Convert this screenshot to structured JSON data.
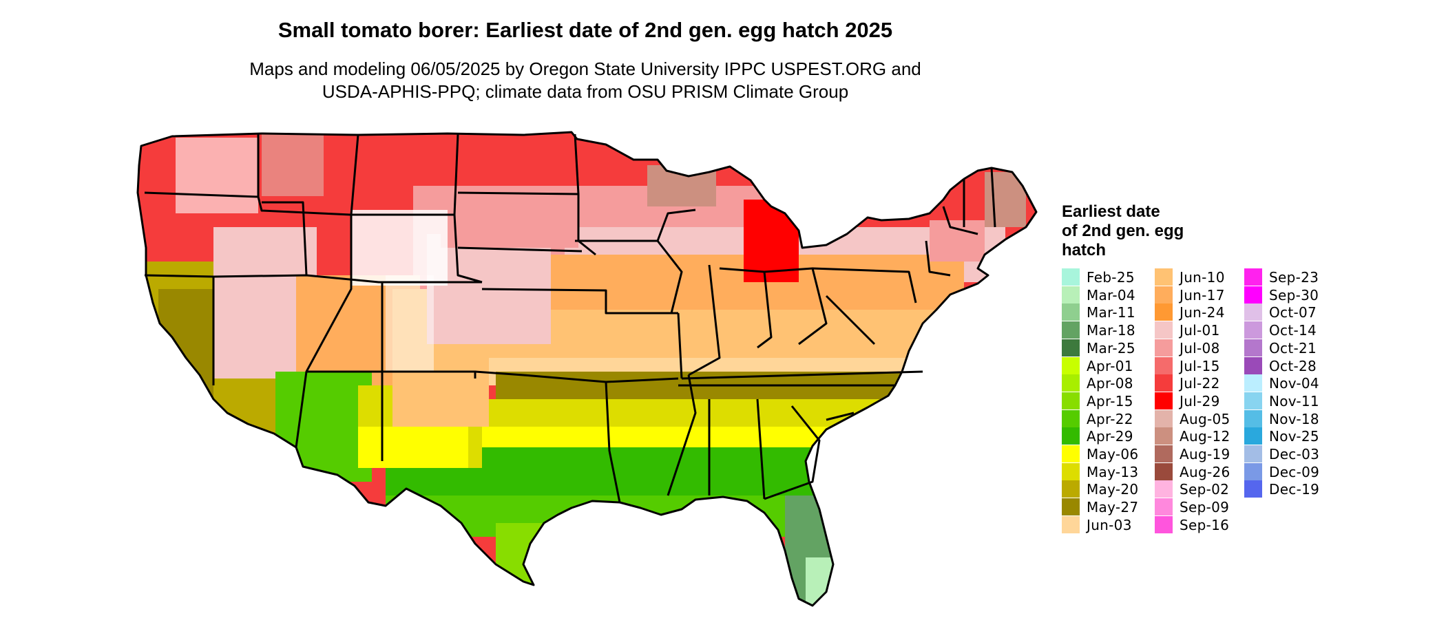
{
  "title": "Small tomato borer: Earliest date of 2nd gen. egg hatch 2025",
  "subtitle_lines": [
    "Maps and modeling 06/05/2025 by Oregon State University IPPC USPEST.ORG and",
    "USDA-APHIS-PPQ; climate data from OSU PRISM Climate Group"
  ],
  "legend": {
    "title_lines": [
      "Earliest date",
      "of 2nd gen. egg",
      "hatch"
    ],
    "columns": [
      [
        {
          "label": "Feb-25",
          "color": "#a8f5dc"
        },
        {
          "label": "Mar-04",
          "color": "#b8f0b8"
        },
        {
          "label": "Mar-11",
          "color": "#8fcf8f"
        },
        {
          "label": "Mar-18",
          "color": "#63a363"
        },
        {
          "label": "Mar-25",
          "color": "#3d7a3d"
        },
        {
          "label": "Apr-01",
          "color": "#c8ff00"
        },
        {
          "label": "Apr-08",
          "color": "#a8ee00"
        },
        {
          "label": "Apr-15",
          "color": "#88dd00"
        },
        {
          "label": "Apr-22",
          "color": "#55cc00"
        },
        {
          "label": "Apr-29",
          "color": "#33bb00"
        },
        {
          "label": "May-06",
          "color": "#ffff00"
        },
        {
          "label": "May-13",
          "color": "#dddd00"
        },
        {
          "label": "May-20",
          "color": "#bbaa00"
        },
        {
          "label": "May-27",
          "color": "#998800"
        },
        {
          "label": "Jun-03",
          "color": "#ffd699"
        }
      ],
      [
        {
          "label": "Jun-10",
          "color": "#ffc273"
        },
        {
          "label": "Jun-17",
          "color": "#ffad5c"
        },
        {
          "label": "Jun-24",
          "color": "#ff9933"
        },
        {
          "label": "Jul-01",
          "color": "#f5c6c6"
        },
        {
          "label": "Jul-08",
          "color": "#f59c9c"
        },
        {
          "label": "Jul-15",
          "color": "#f56b6b"
        },
        {
          "label": "Jul-22",
          "color": "#f53c3c"
        },
        {
          "label": "Jul-29",
          "color": "#ff0000"
        },
        {
          "label": "Aug-05",
          "color": "#e3b3aa"
        },
        {
          "label": "Aug-12",
          "color": "#cc9080"
        },
        {
          "label": "Aug-19",
          "color": "#b06a5e"
        },
        {
          "label": "Aug-26",
          "color": "#9a4a3c"
        },
        {
          "label": "Sep-02",
          "color": "#ffb3e0"
        },
        {
          "label": "Sep-09",
          "color": "#ff88dd"
        },
        {
          "label": "Sep-16",
          "color": "#ff55dd"
        }
      ],
      [
        {
          "label": "Sep-23",
          "color": "#ff22ee"
        },
        {
          "label": "Sep-30",
          "color": "#ff00ff"
        },
        {
          "label": "Oct-07",
          "color": "#e0c0e8"
        },
        {
          "label": "Oct-14",
          "color": "#cc99dd"
        },
        {
          "label": "Oct-21",
          "color": "#b477cc"
        },
        {
          "label": "Oct-28",
          "color": "#9a4ab8"
        },
        {
          "label": "Nov-04",
          "color": "#bbeeff"
        },
        {
          "label": "Nov-11",
          "color": "#88d4f0"
        },
        {
          "label": "Nov-18",
          "color": "#55bde6"
        },
        {
          "label": "Nov-25",
          "color": "#2aa8dd"
        },
        {
          "label": "Dec-03",
          "color": "#a3bde6"
        },
        {
          "label": "Dec-09",
          "color": "#7a99e6"
        },
        {
          "label": "Dec-19",
          "color": "#5566ee"
        }
      ]
    ]
  }
}
